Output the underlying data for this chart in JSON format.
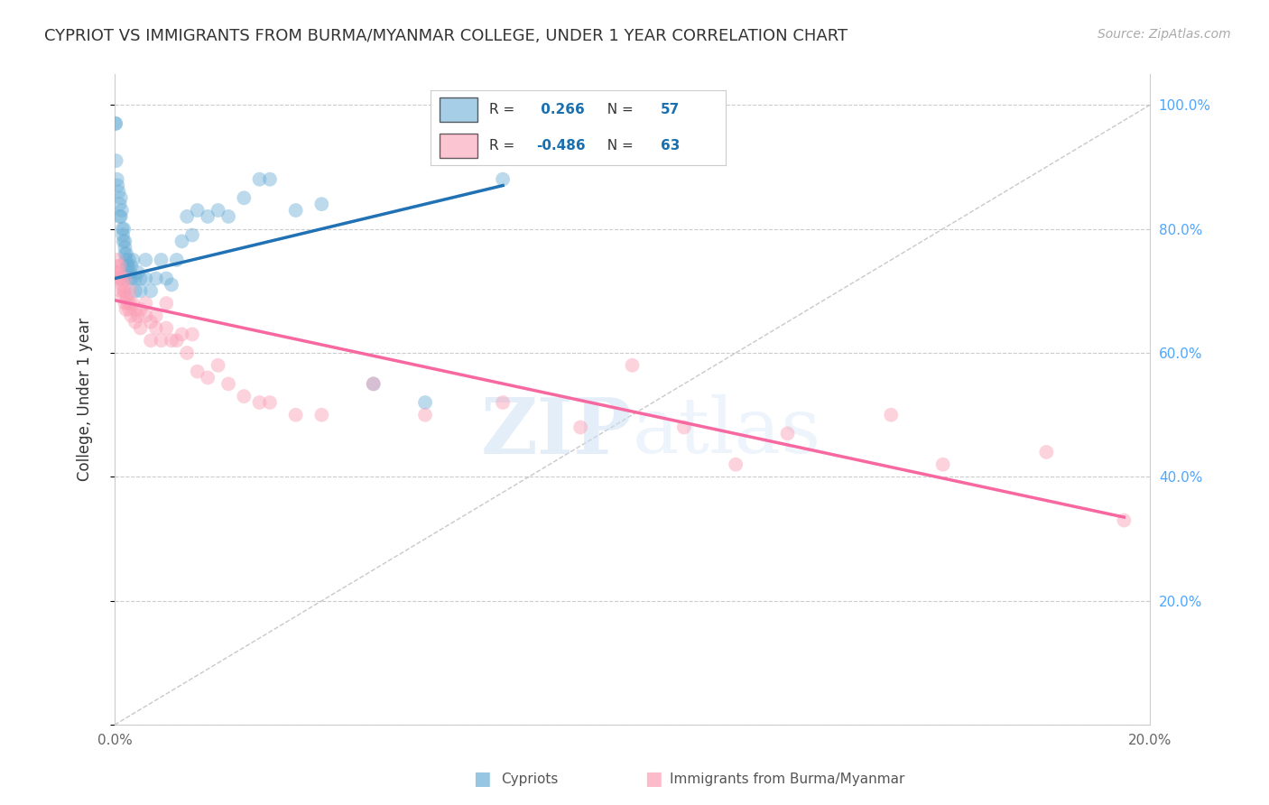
{
  "title": "CYPRIOT VS IMMIGRANTS FROM BURMA/MYANMAR COLLEGE, UNDER 1 YEAR CORRELATION CHART",
  "source": "Source: ZipAtlas.com",
  "ylabel": "College, Under 1 year",
  "xlim": [
    0.0,
    0.2
  ],
  "ylim": [
    0.0,
    1.05
  ],
  "xticks": [
    0.0,
    0.05,
    0.1,
    0.15,
    0.2
  ],
  "xticklabels": [
    "0.0%",
    "",
    "",
    "",
    "20.0%"
  ],
  "right_yticks": [
    0.0,
    0.2,
    0.4,
    0.6,
    0.8,
    1.0
  ],
  "right_yticklabels": [
    "",
    "20.0%",
    "40.0%",
    "60.0%",
    "80.0%",
    "100.0%"
  ],
  "blue_R": 0.266,
  "blue_N": 57,
  "pink_R": -0.486,
  "pink_N": 63,
  "blue_color": "#6baed6",
  "pink_color": "#fa9fb5",
  "blue_scatter_x": [
    0.0002,
    0.0002,
    0.0003,
    0.0005,
    0.0006,
    0.0008,
    0.001,
    0.001,
    0.0012,
    0.0012,
    0.0014,
    0.0015,
    0.0016,
    0.0017,
    0.0018,
    0.002,
    0.002,
    0.002,
    0.0022,
    0.0023,
    0.0024,
    0.0025,
    0.0026,
    0.0028,
    0.003,
    0.003,
    0.0032,
    0.0034,
    0.0036,
    0.004,
    0.004,
    0.0045,
    0.005,
    0.005,
    0.006,
    0.006,
    0.007,
    0.008,
    0.009,
    0.01,
    0.011,
    0.012,
    0.013,
    0.014,
    0.015,
    0.016,
    0.018,
    0.02,
    0.022,
    0.025,
    0.028,
    0.03,
    0.035,
    0.04,
    0.05,
    0.06,
    0.075
  ],
  "blue_scatter_y": [
    0.97,
    0.97,
    0.91,
    0.88,
    0.87,
    0.86,
    0.84,
    0.82,
    0.82,
    0.85,
    0.83,
    0.8,
    0.79,
    0.78,
    0.8,
    0.77,
    0.76,
    0.78,
    0.75,
    0.76,
    0.74,
    0.73,
    0.74,
    0.75,
    0.73,
    0.72,
    0.74,
    0.72,
    0.75,
    0.72,
    0.7,
    0.73,
    0.72,
    0.7,
    0.72,
    0.75,
    0.7,
    0.72,
    0.75,
    0.72,
    0.71,
    0.75,
    0.78,
    0.82,
    0.79,
    0.83,
    0.82,
    0.83,
    0.82,
    0.85,
    0.88,
    0.88,
    0.83,
    0.84,
    0.55,
    0.52,
    0.88
  ],
  "pink_scatter_x": [
    0.0003,
    0.0004,
    0.0005,
    0.0006,
    0.0008,
    0.001,
    0.001,
    0.0012,
    0.0013,
    0.0015,
    0.0016,
    0.0018,
    0.002,
    0.002,
    0.002,
    0.0022,
    0.0024,
    0.0025,
    0.0028,
    0.003,
    0.003,
    0.0032,
    0.0035,
    0.004,
    0.004,
    0.0045,
    0.005,
    0.005,
    0.006,
    0.006,
    0.007,
    0.007,
    0.008,
    0.008,
    0.009,
    0.01,
    0.01,
    0.011,
    0.012,
    0.013,
    0.014,
    0.015,
    0.016,
    0.018,
    0.02,
    0.022,
    0.025,
    0.028,
    0.03,
    0.035,
    0.04,
    0.05,
    0.06,
    0.075,
    0.09,
    0.1,
    0.11,
    0.12,
    0.13,
    0.15,
    0.16,
    0.18,
    0.195
  ],
  "pink_scatter_y": [
    0.73,
    0.75,
    0.72,
    0.74,
    0.73,
    0.72,
    0.74,
    0.7,
    0.72,
    0.71,
    0.69,
    0.7,
    0.72,
    0.68,
    0.7,
    0.67,
    0.69,
    0.68,
    0.67,
    0.68,
    0.7,
    0.66,
    0.68,
    0.67,
    0.65,
    0.66,
    0.67,
    0.64,
    0.66,
    0.68,
    0.65,
    0.62,
    0.64,
    0.66,
    0.62,
    0.64,
    0.68,
    0.62,
    0.62,
    0.63,
    0.6,
    0.63,
    0.57,
    0.56,
    0.58,
    0.55,
    0.53,
    0.52,
    0.52,
    0.5,
    0.5,
    0.55,
    0.5,
    0.52,
    0.48,
    0.58,
    0.48,
    0.42,
    0.47,
    0.5,
    0.42,
    0.44,
    0.33
  ],
  "blue_line_x": [
    0.0,
    0.075
  ],
  "blue_line_y": [
    0.72,
    0.87
  ],
  "pink_line_x": [
    0.0,
    0.195
  ],
  "pink_line_y": [
    0.685,
    0.335
  ],
  "ref_line_x": [
    0.0,
    0.2
  ],
  "ref_line_y": [
    0.0,
    1.0
  ],
  "watermark_zip": "ZIP",
  "watermark_atlas": "atlas",
  "bottom_legend_blue": "Cypriots",
  "bottom_legend_pink": "Immigrants from Burma/Myanmar"
}
